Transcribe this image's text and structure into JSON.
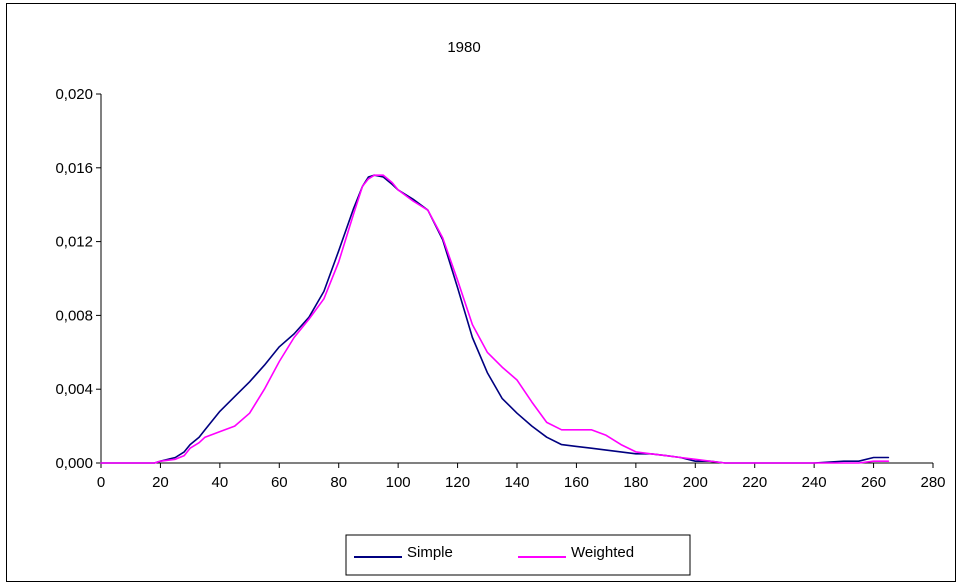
{
  "chart_data": {
    "type": "line",
    "title": "1980",
    "xlabel": "",
    "ylabel": "",
    "xlim": [
      0,
      280
    ],
    "ylim": [
      0,
      0.02
    ],
    "x_ticks": [
      0,
      20,
      40,
      60,
      80,
      100,
      120,
      140,
      160,
      180,
      200,
      220,
      240,
      260,
      280
    ],
    "x_tick_labels": [
      "0",
      "20",
      "40",
      "60",
      "80",
      "100",
      "120",
      "140",
      "160",
      "180",
      "200",
      "220",
      "240",
      "260",
      "280"
    ],
    "y_ticks": [
      0,
      0.004,
      0.008,
      0.012,
      0.016,
      0.02
    ],
    "y_tick_labels": [
      "0,000",
      "0,004",
      "0,008",
      "0,012",
      "0,016",
      "0,020"
    ],
    "grid": false,
    "legend_position": "bottom",
    "series": [
      {
        "name": "Simple",
        "color": "#000080",
        "x": [
          0,
          10,
          18,
          20,
          25,
          28,
          30,
          33,
          35,
          40,
          45,
          50,
          55,
          60,
          65,
          70,
          75,
          80,
          85,
          88,
          90,
          92,
          95,
          98,
          100,
          105,
          110,
          115,
          120,
          125,
          130,
          135,
          140,
          145,
          150,
          155,
          160,
          165,
          170,
          175,
          180,
          185,
          190,
          195,
          200,
          205,
          210,
          220,
          240,
          250,
          255,
          260,
          265
        ],
        "y": [
          0,
          0,
          0,
          0.0001,
          0.0003,
          0.0006,
          0.001,
          0.0014,
          0.0018,
          0.0028,
          0.0036,
          0.0044,
          0.0053,
          0.0063,
          0.007,
          0.0079,
          0.0093,
          0.0115,
          0.0138,
          0.015,
          0.0155,
          0.0156,
          0.0155,
          0.0151,
          0.0148,
          0.0143,
          0.0137,
          0.0121,
          0.0095,
          0.0068,
          0.0049,
          0.0035,
          0.0027,
          0.002,
          0.0014,
          0.001,
          0.0009,
          0.0008,
          0.0007,
          0.0006,
          0.0005,
          0.0005,
          0.0004,
          0.0003,
          0.0001,
          0.0001,
          0,
          0,
          0,
          0.0001,
          0.0001,
          0.0003,
          0.0003
        ]
      },
      {
        "name": "Weighted",
        "color": "#ff00ff",
        "x": [
          0,
          10,
          18,
          20,
          25,
          28,
          30,
          33,
          35,
          40,
          45,
          50,
          55,
          60,
          65,
          70,
          75,
          80,
          85,
          88,
          90,
          92,
          95,
          98,
          100,
          105,
          110,
          115,
          120,
          125,
          130,
          135,
          140,
          145,
          150,
          155,
          160,
          165,
          170,
          175,
          180,
          185,
          190,
          195,
          200,
          205,
          210,
          220,
          240,
          250,
          255,
          260,
          265
        ],
        "y": [
          0,
          0,
          0,
          0.0001,
          0.0002,
          0.0004,
          0.0008,
          0.0011,
          0.0014,
          0.0017,
          0.002,
          0.0027,
          0.004,
          0.0055,
          0.0068,
          0.0078,
          0.0089,
          0.0109,
          0.0135,
          0.015,
          0.0154,
          0.0156,
          0.0156,
          0.0152,
          0.0148,
          0.0142,
          0.0137,
          0.0122,
          0.0099,
          0.0075,
          0.006,
          0.0052,
          0.0045,
          0.0033,
          0.0022,
          0.0018,
          0.0018,
          0.0018,
          0.0015,
          0.001,
          0.0006,
          0.0005,
          0.0004,
          0.0003,
          0.0002,
          0.0001,
          0,
          0,
          0,
          0,
          0,
          0.0001,
          0.0001
        ]
      }
    ]
  }
}
